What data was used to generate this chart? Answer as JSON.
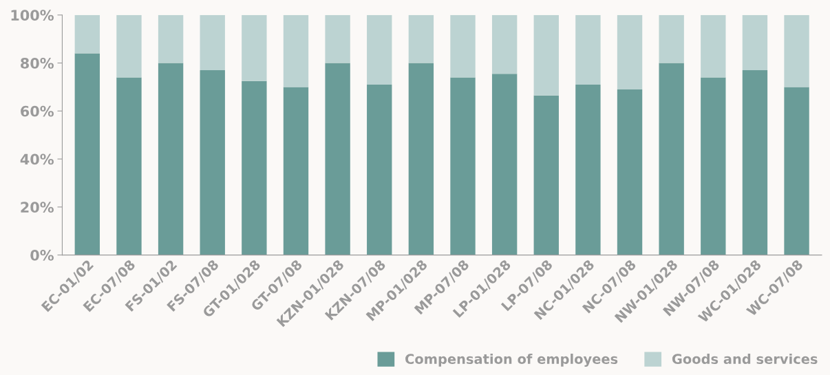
{
  "chart_data": {
    "type": "bar",
    "stacked": true,
    "categories": [
      "EC-01/02",
      "EC-07/08",
      "FS-01/02",
      "FS-07/08",
      "GT-01/028",
      "GT-07/08",
      "KZN-01/028",
      "KZN-07/08",
      "MP-01/028",
      "MP-07/08",
      "LP-01/028",
      "LP-07/08",
      "NC-01/028",
      "NC-07/08",
      "NW-01/028",
      "NW-07/08",
      "WC-01/028",
      "WC-07/08"
    ],
    "series": [
      {
        "name": "Compensation of employees",
        "color": "#6a9c98",
        "values": [
          84,
          74,
          80,
          77,
          72.5,
          70,
          80,
          71,
          80,
          74,
          75.5,
          66.5,
          71,
          69,
          80,
          74,
          77,
          70
        ]
      },
      {
        "name": "Goods and services",
        "color": "#bcd3d2",
        "values": [
          16,
          26,
          20,
          23,
          27.5,
          30,
          20,
          29,
          20,
          26,
          24.5,
          33.5,
          29,
          31,
          20,
          26,
          23,
          30
        ]
      }
    ],
    "ylim": [
      0,
      100
    ],
    "yticks": [
      {
        "value": 0,
        "label": "0%"
      },
      {
        "value": 20,
        "label": "20%"
      },
      {
        "value": 40,
        "label": "40%"
      },
      {
        "value": 60,
        "label": "60%"
      },
      {
        "value": 80,
        "label": "80%"
      },
      {
        "value": 100,
        "label": "100%"
      }
    ],
    "grid": false,
    "legend": "bottom right"
  }
}
